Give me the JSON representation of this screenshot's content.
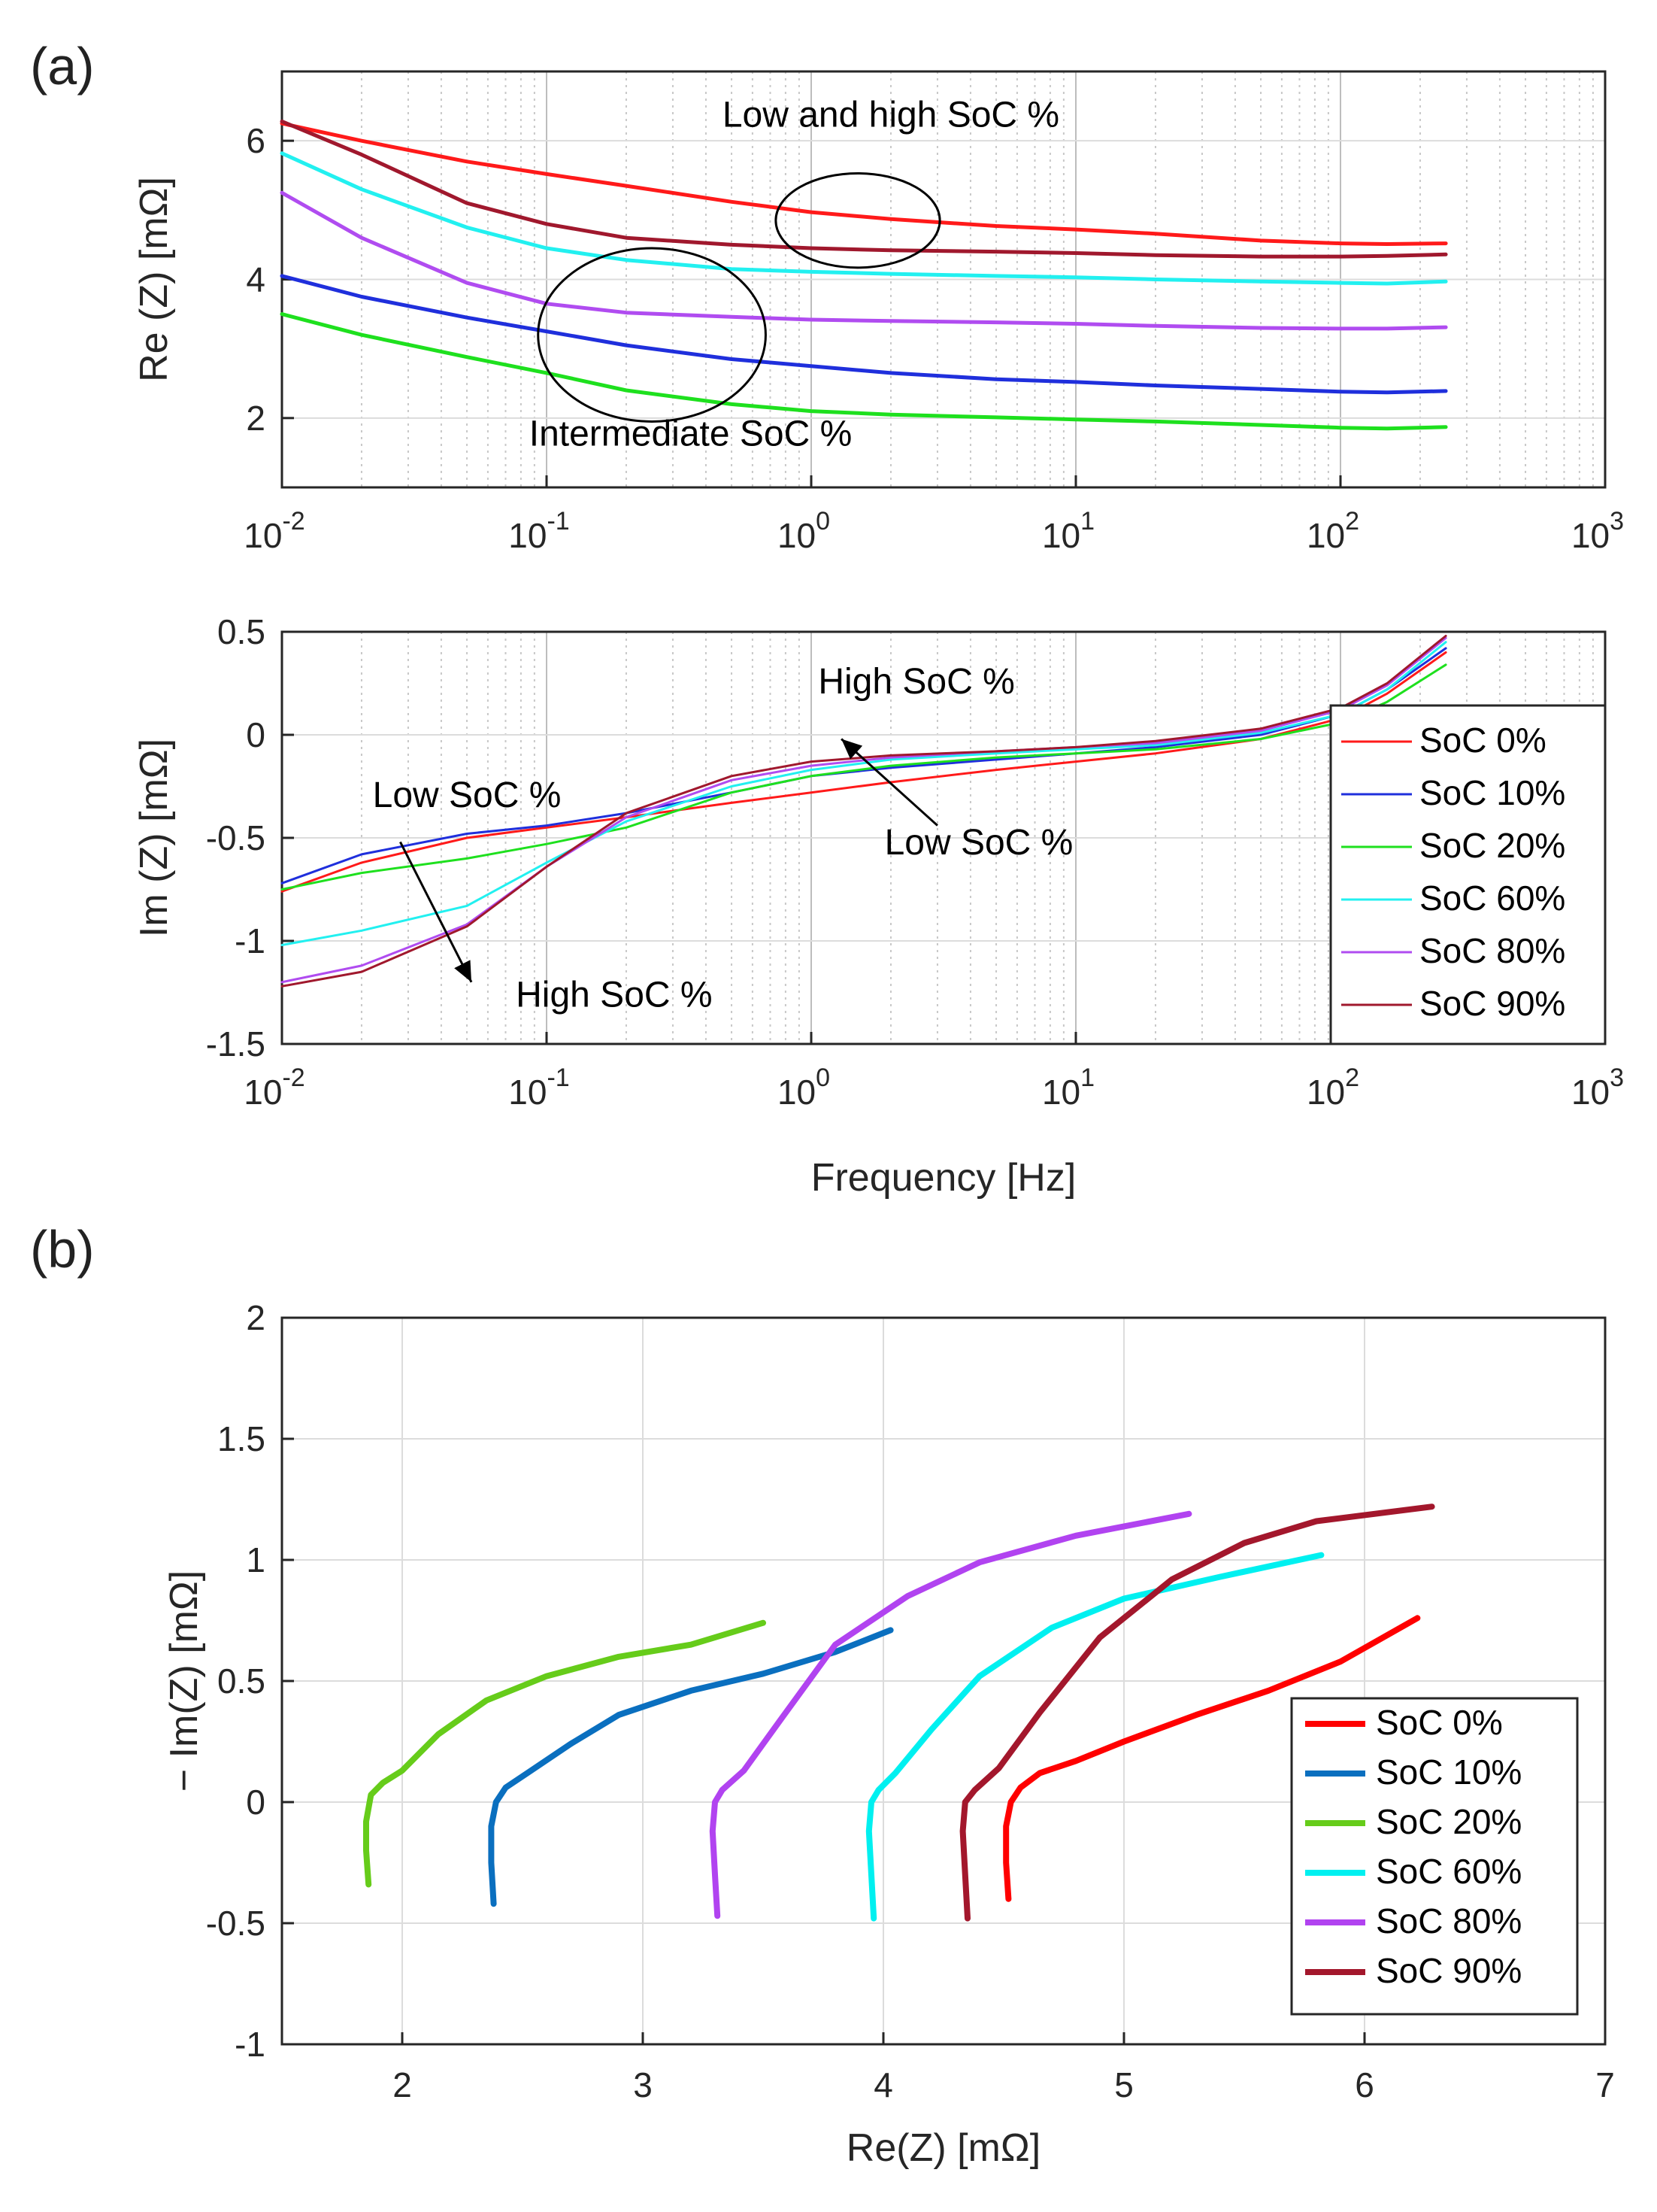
{
  "figure": {
    "panel_a_label": "(a)",
    "panel_b_label": "(b)"
  },
  "chart_data": [
    {
      "id": "re_vs_freq",
      "type": "line",
      "xscale": "log",
      "xlim": [
        0.01,
        1000
      ],
      "ylim": [
        1,
        7
      ],
      "xlabel": "",
      "ylabel": "Re (Z) [mΩ]",
      "xtick_labels": [
        "10",
        "10",
        "10",
        "10",
        "10",
        "10"
      ],
      "xtick_exponents": [
        "-2",
        "-1",
        "0",
        "1",
        "2",
        "3"
      ],
      "ytick_labels": [
        "2",
        "4",
        "6"
      ],
      "ytick_values": [
        2,
        4,
        6
      ],
      "grid": true,
      "x": [
        0.01,
        0.02,
        0.05,
        0.1,
        0.2,
        0.5,
        1,
        2,
        5,
        10,
        20,
        50,
        100,
        150,
        250
      ],
      "series": [
        {
          "name": "SoC 0%",
          "color": "#ff1a1a",
          "values": [
            6.25,
            6.0,
            5.7,
            5.52,
            5.35,
            5.12,
            4.97,
            4.87,
            4.77,
            4.72,
            4.66,
            4.56,
            4.52,
            4.51,
            4.52
          ]
        },
        {
          "name": "SoC 10%",
          "color": "#1f2fdc",
          "values": [
            4.05,
            3.75,
            3.45,
            3.25,
            3.05,
            2.85,
            2.75,
            2.65,
            2.56,
            2.52,
            2.47,
            2.42,
            2.38,
            2.37,
            2.39
          ]
        },
        {
          "name": "SoC 20%",
          "color": "#1ee01e",
          "values": [
            3.5,
            3.2,
            2.88,
            2.65,
            2.4,
            2.2,
            2.1,
            2.05,
            2.01,
            1.98,
            1.95,
            1.9,
            1.86,
            1.85,
            1.87
          ]
        },
        {
          "name": "SoC 60%",
          "color": "#22f0f0",
          "values": [
            5.82,
            5.3,
            4.75,
            4.45,
            4.28,
            4.15,
            4.11,
            4.08,
            4.05,
            4.03,
            4.0,
            3.97,
            3.95,
            3.94,
            3.97
          ]
        },
        {
          "name": "SoC 80%",
          "color": "#b04cf0",
          "values": [
            5.25,
            4.6,
            3.95,
            3.65,
            3.52,
            3.46,
            3.42,
            3.4,
            3.38,
            3.36,
            3.33,
            3.3,
            3.29,
            3.29,
            3.31
          ]
        },
        {
          "name": "SoC 90%",
          "color": "#a0182d",
          "values": [
            6.28,
            5.8,
            5.1,
            4.8,
            4.6,
            4.5,
            4.45,
            4.42,
            4.4,
            4.38,
            4.35,
            4.33,
            4.33,
            4.34,
            4.36
          ]
        }
      ],
      "annotations": [
        {
          "text": "Low and high SoC %",
          "x": 2.0,
          "y": 6.2
        },
        {
          "text": "Intermediate SoC %",
          "x": 0.35,
          "y": 1.6
        }
      ],
      "ellipses": [
        {
          "cx": 1.5,
          "cy": 4.85,
          "decades_rx": 0.31,
          "ry": 0.68
        },
        {
          "cx": 0.25,
          "cy": 3.2,
          "decades_rx": 0.43,
          "ry": 1.25
        }
      ]
    },
    {
      "id": "im_vs_freq",
      "type": "line",
      "xscale": "log",
      "xlim": [
        0.01,
        1000
      ],
      "ylim": [
        -1.5,
        0.5
      ],
      "xlabel": "Frequency [Hz]",
      "ylabel": "Im (Z) [mΩ]",
      "xtick_labels": [
        "10",
        "10",
        "10",
        "10",
        "10",
        "10"
      ],
      "xtick_exponents": [
        "-2",
        "-1",
        "0",
        "1",
        "2",
        "3"
      ],
      "ytick_labels": [
        "0.5",
        "0",
        "-0.5",
        "-1",
        "-1.5"
      ],
      "ytick_values": [
        0.5,
        0,
        -0.5,
        -1,
        -1.5
      ],
      "grid": true,
      "legend_position": "right-inside",
      "x": [
        0.01,
        0.02,
        0.05,
        0.1,
        0.2,
        0.5,
        1,
        2,
        5,
        10,
        20,
        50,
        100,
        150,
        250
      ],
      "series": [
        {
          "name": "SoC 0%",
          "color": "#ff1a1a",
          "values": [
            -0.76,
            -0.62,
            -0.5,
            -0.45,
            -0.4,
            -0.33,
            -0.28,
            -0.23,
            -0.17,
            -0.13,
            -0.09,
            -0.02,
            0.08,
            0.2,
            0.4
          ]
        },
        {
          "name": "SoC 10%",
          "color": "#1f2fdc",
          "values": [
            -0.72,
            -0.58,
            -0.48,
            -0.44,
            -0.38,
            -0.28,
            -0.2,
            -0.16,
            -0.12,
            -0.09,
            -0.06,
            0.0,
            0.1,
            0.22,
            0.42
          ]
        },
        {
          "name": "SoC 20%",
          "color": "#1ee01e",
          "values": [
            -0.75,
            -0.67,
            -0.6,
            -0.53,
            -0.45,
            -0.28,
            -0.2,
            -0.15,
            -0.11,
            -0.09,
            -0.07,
            -0.02,
            0.06,
            0.16,
            0.34
          ]
        },
        {
          "name": "SoC 60%",
          "color": "#22f0f0",
          "values": [
            -1.02,
            -0.95,
            -0.83,
            -0.62,
            -0.42,
            -0.25,
            -0.17,
            -0.12,
            -0.09,
            -0.07,
            -0.05,
            0.01,
            0.1,
            0.22,
            0.45
          ]
        },
        {
          "name": "SoC 80%",
          "color": "#b04cf0",
          "values": [
            -1.2,
            -1.12,
            -0.92,
            -0.64,
            -0.4,
            -0.22,
            -0.15,
            -0.11,
            -0.08,
            -0.06,
            -0.04,
            0.02,
            0.12,
            0.24,
            0.47
          ]
        },
        {
          "name": "SoC 90%",
          "color": "#a0182d",
          "values": [
            -1.22,
            -1.15,
            -0.93,
            -0.64,
            -0.38,
            -0.2,
            -0.13,
            -0.1,
            -0.08,
            -0.06,
            -0.03,
            0.03,
            0.13,
            0.25,
            0.48
          ]
        }
      ],
      "annotations": [
        {
          "text": "High SoC %",
          "x": 2.5,
          "y": 0.2
        },
        {
          "text": "Low SoC %",
          "x": 4.3,
          "y": -0.58
        },
        {
          "text": "Low SoC %",
          "x": 0.05,
          "y": -0.35
        },
        {
          "text": "High SoC %",
          "x": 0.18,
          "y": -1.32
        }
      ],
      "arrows": [
        {
          "from": [
            3.0,
            -0.44
          ],
          "to": [
            1.3,
            -0.02
          ]
        },
        {
          "from": [
            0.028,
            -0.52
          ],
          "to": [
            0.052,
            -1.2
          ]
        }
      ]
    },
    {
      "id": "nyquist",
      "type": "line",
      "xlim": [
        1.5,
        7
      ],
      "ylim": [
        -1,
        2
      ],
      "xlabel": "Re(Z) [mΩ]",
      "ylabel": "− Im(Z) [mΩ]",
      "xtick_labels": [
        "2",
        "3",
        "4",
        "5",
        "6",
        "7"
      ],
      "xtick_values": [
        2,
        3,
        4,
        5,
        6,
        7
      ],
      "ytick_labels": [
        "2",
        "1.5",
        "1",
        "0.5",
        "0",
        "-0.5",
        "-1"
      ],
      "ytick_values": [
        2,
        1.5,
        1,
        0.5,
        0,
        -0.5,
        -1
      ],
      "grid": true,
      "legend_position": "bottom-right",
      "series": [
        {
          "name": "SoC 0%",
          "color": "#ff0000",
          "x": [
            4.52,
            4.51,
            4.51,
            4.53,
            4.57,
            4.65,
            4.8,
            5.0,
            5.3,
            5.6,
            5.9,
            6.22
          ],
          "y": [
            -0.4,
            -0.25,
            -0.1,
            0.0,
            0.06,
            0.12,
            0.17,
            0.25,
            0.36,
            0.46,
            0.58,
            0.76
          ]
        },
        {
          "name": "SoC 10%",
          "color": "#0a6fbf",
          "x": [
            2.38,
            2.37,
            2.37,
            2.39,
            2.43,
            2.52,
            2.7,
            2.9,
            3.2,
            3.5,
            3.8,
            4.03
          ],
          "y": [
            -0.42,
            -0.25,
            -0.1,
            0.0,
            0.06,
            0.12,
            0.24,
            0.36,
            0.46,
            0.53,
            0.62,
            0.71
          ]
        },
        {
          "name": "SoC 20%",
          "color": "#66cc1a",
          "x": [
            1.86,
            1.85,
            1.85,
            1.87,
            1.92,
            2.0,
            2.15,
            2.35,
            2.6,
            2.9,
            3.2,
            3.5
          ],
          "y": [
            -0.34,
            -0.2,
            -0.08,
            0.03,
            0.08,
            0.13,
            0.28,
            0.42,
            0.52,
            0.6,
            0.65,
            0.74
          ]
        },
        {
          "name": "SoC 60%",
          "color": "#00f0f0",
          "x": [
            3.96,
            3.95,
            3.94,
            3.95,
            3.98,
            4.05,
            4.2,
            4.4,
            4.7,
            5.0,
            5.4,
            5.82
          ],
          "y": [
            -0.48,
            -0.3,
            -0.12,
            0.0,
            0.05,
            0.12,
            0.3,
            0.52,
            0.72,
            0.84,
            0.93,
            1.02
          ]
        },
        {
          "name": "SoC 80%",
          "color": "#b143f0",
          "x": [
            3.31,
            3.3,
            3.29,
            3.3,
            3.33,
            3.42,
            3.58,
            3.8,
            4.1,
            4.4,
            4.8,
            5.27
          ],
          "y": [
            -0.47,
            -0.3,
            -0.12,
            0.0,
            0.05,
            0.13,
            0.35,
            0.65,
            0.85,
            0.99,
            1.1,
            1.19
          ]
        },
        {
          "name": "SoC 90%",
          "color": "#a3172c",
          "x": [
            4.35,
            4.34,
            4.33,
            4.34,
            4.38,
            4.48,
            4.65,
            4.9,
            5.2,
            5.5,
            5.8,
            6.28
          ],
          "y": [
            -0.48,
            -0.3,
            -0.12,
            0.0,
            0.05,
            0.14,
            0.37,
            0.68,
            0.92,
            1.07,
            1.16,
            1.22
          ]
        }
      ]
    }
  ]
}
